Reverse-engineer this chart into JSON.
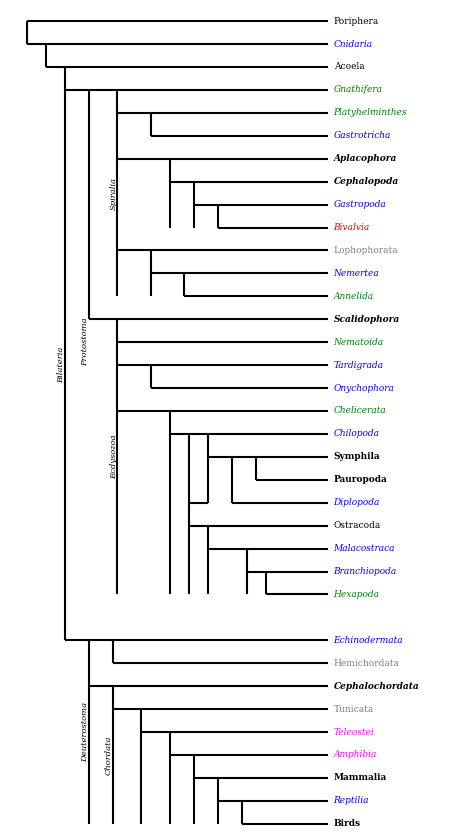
{
  "taxa": [
    {
      "name": "Poriphera",
      "color": "#000000",
      "bold": false,
      "italic": false,
      "y": 35
    },
    {
      "name": "Cnidaria",
      "color": "#0000FF",
      "bold": false,
      "italic": true,
      "y": 34
    },
    {
      "name": "Acoela",
      "color": "#000000",
      "bold": false,
      "italic": false,
      "y": 33
    },
    {
      "name": "Gnathifera",
      "color": "#008000",
      "bold": false,
      "italic": true,
      "y": 32
    },
    {
      "name": "Platyhelminthes",
      "color": "#008000",
      "bold": false,
      "italic": true,
      "y": 31
    },
    {
      "name": "Gastrotricha",
      "color": "#0000FF",
      "bold": false,
      "italic": true,
      "y": 30
    },
    {
      "name": "Aplacophora",
      "color": "#000000",
      "bold": true,
      "italic": true,
      "y": 29
    },
    {
      "name": "Cephalopoda",
      "color": "#000000",
      "bold": true,
      "italic": true,
      "y": 28
    },
    {
      "name": "Gastropoda",
      "color": "#0000FF",
      "bold": false,
      "italic": true,
      "y": 27
    },
    {
      "name": "Bivalvia",
      "color": "#FF0000",
      "bold": false,
      "italic": true,
      "y": 26
    },
    {
      "name": "Lophophorata",
      "color": "#808080",
      "bold": false,
      "italic": false,
      "y": 25
    },
    {
      "name": "Nemertea",
      "color": "#0000FF",
      "bold": false,
      "italic": true,
      "y": 24
    },
    {
      "name": "Annelida",
      "color": "#008000",
      "bold": false,
      "italic": true,
      "y": 23
    },
    {
      "name": "Scalidophora",
      "color": "#000000",
      "bold": true,
      "italic": true,
      "y": 22
    },
    {
      "name": "Nematoida",
      "color": "#008000",
      "bold": false,
      "italic": true,
      "y": 21
    },
    {
      "name": "Tardigrada",
      "color": "#0000FF",
      "bold": false,
      "italic": true,
      "y": 20
    },
    {
      "name": "Onychophora",
      "color": "#0000FF",
      "bold": false,
      "italic": true,
      "y": 19
    },
    {
      "name": "Chelicerata",
      "color": "#008000",
      "bold": false,
      "italic": true,
      "y": 18
    },
    {
      "name": "Chilopoda",
      "color": "#0000FF",
      "bold": false,
      "italic": true,
      "y": 17
    },
    {
      "name": "Symphila",
      "color": "#000000",
      "bold": true,
      "italic": false,
      "y": 16
    },
    {
      "name": "Pauropoda",
      "color": "#000000",
      "bold": true,
      "italic": false,
      "y": 15
    },
    {
      "name": "Diplopoda",
      "color": "#0000FF",
      "bold": false,
      "italic": true,
      "y": 14
    },
    {
      "name": "Ostracoda",
      "color": "#000000",
      "bold": false,
      "italic": false,
      "y": 13
    },
    {
      "name": "Malacostraca",
      "color": "#0000FF",
      "bold": false,
      "italic": true,
      "y": 12
    },
    {
      "name": "Branchiopoda",
      "color": "#0000FF",
      "bold": false,
      "italic": true,
      "y": 11
    },
    {
      "name": "Hexapoda",
      "color": "#008000",
      "bold": false,
      "italic": true,
      "y": 10
    },
    {
      "name": "Echinodermata",
      "color": "#0000FF",
      "bold": false,
      "italic": true,
      "y": 8
    },
    {
      "name": "Hemichordata",
      "color": "#808080",
      "bold": false,
      "italic": false,
      "y": 7
    },
    {
      "name": "Cephalochordata",
      "color": "#000000",
      "bold": true,
      "italic": true,
      "y": 6
    },
    {
      "name": "Tunicata",
      "color": "#808080",
      "bold": false,
      "italic": false,
      "y": 5
    },
    {
      "name": "Teleostei",
      "color": "#FF00FF",
      "bold": false,
      "italic": true,
      "y": 4
    },
    {
      "name": "Amphibia",
      "color": "#FF00FF",
      "bold": false,
      "italic": true,
      "y": 3
    },
    {
      "name": "Mammalia",
      "color": "#000000",
      "bold": true,
      "italic": false,
      "y": 2
    },
    {
      "name": "Reptilia",
      "color": "#0000FF",
      "bold": false,
      "italic": true,
      "y": 1
    },
    {
      "name": "Birds",
      "color": "#000000",
      "bold": true,
      "italic": false,
      "y": 0
    }
  ],
  "background_color": "#FFFFFF",
  "line_color": "#000000",
  "line_width": 1.5
}
